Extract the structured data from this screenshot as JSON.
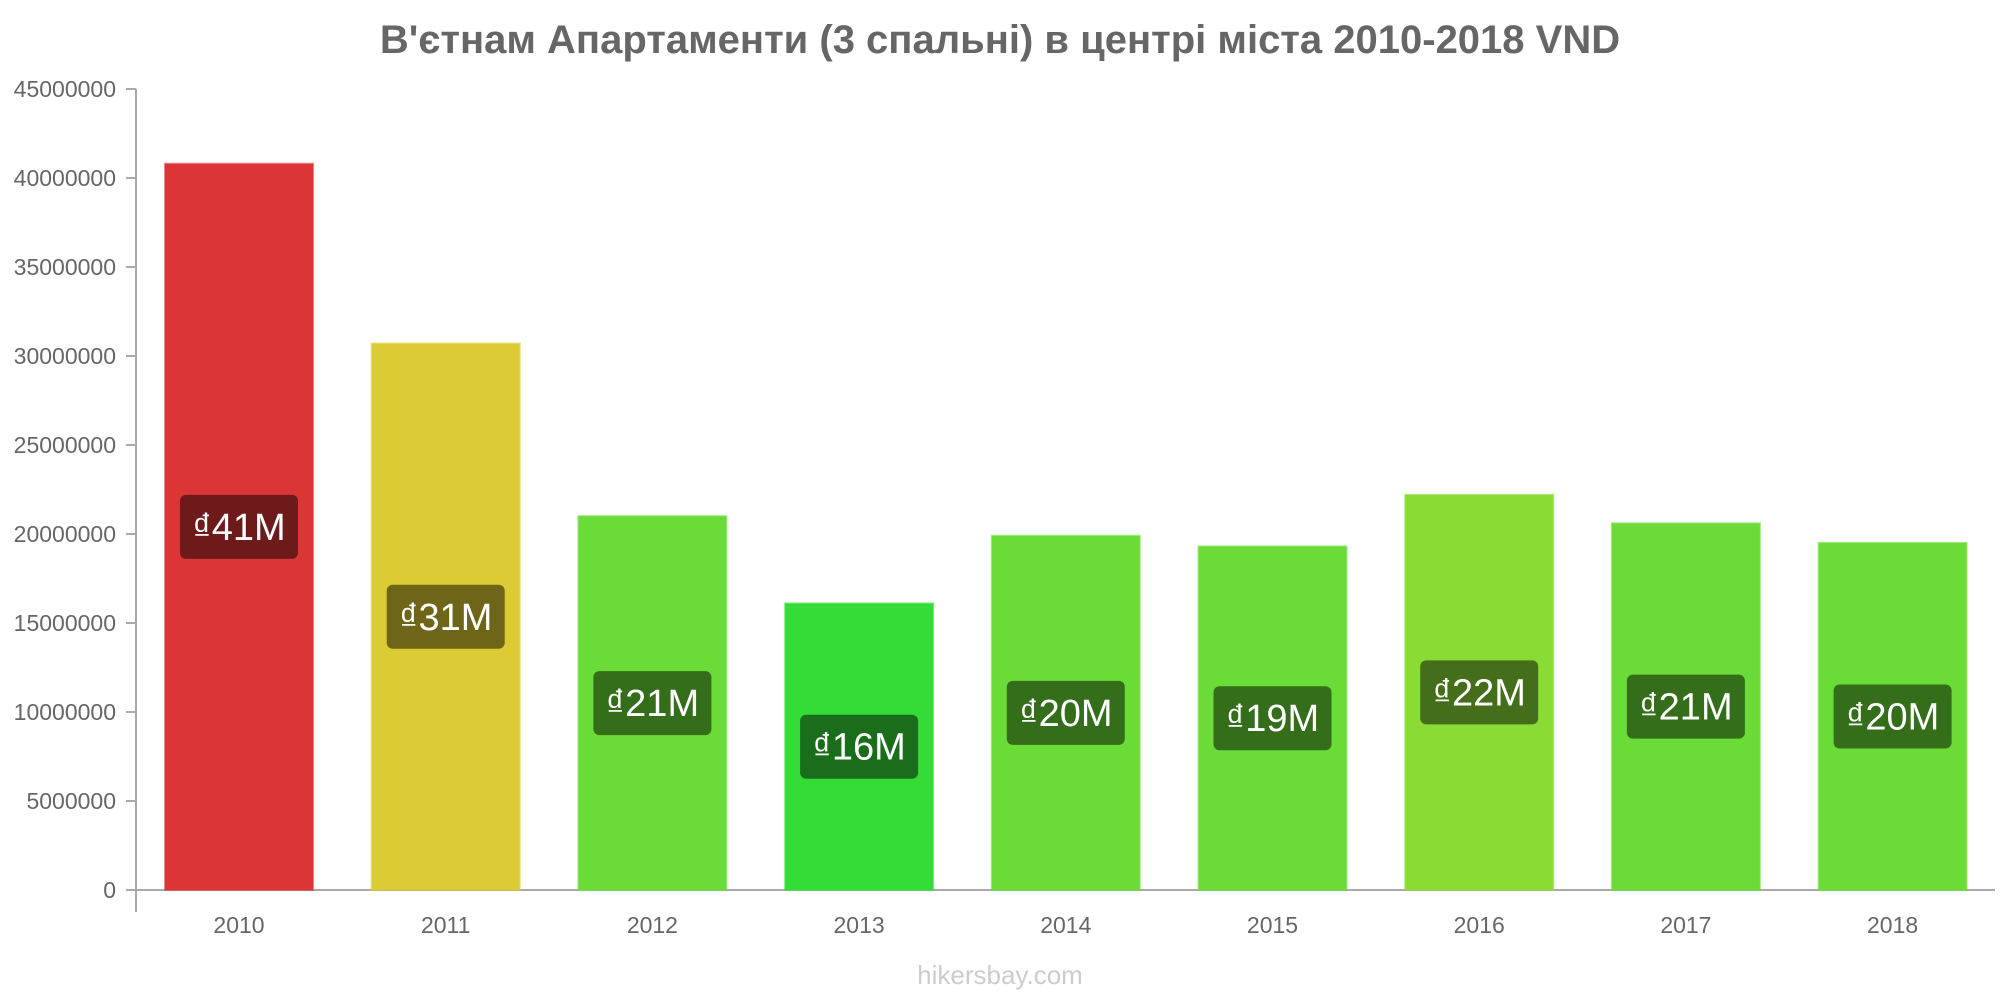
{
  "chart_data": {
    "type": "bar",
    "title": "В'єтнам Апартаменти (3 спальні) в центрі міста 2010-2018 VND",
    "xlabel": "",
    "ylabel": "",
    "ylim": [
      0,
      45000000
    ],
    "yticks": [
      "0",
      "5000000",
      "10000000",
      "15000000",
      "20000000",
      "25000000",
      "30000000",
      "35000000",
      "40000000",
      "45000000"
    ],
    "categories": [
      "2010",
      "2011",
      "2012",
      "2013",
      "2014",
      "2015",
      "2016",
      "2017",
      "2018"
    ],
    "values": [
      40800000,
      30700000,
      21000000,
      16100000,
      19900000,
      19300000,
      22200000,
      20600000,
      19500000
    ],
    "labels": [
      "₫41M",
      "₫31M",
      "₫21M",
      "₫16M",
      "₫20M",
      "₫19M",
      "₫22M",
      "₫21M",
      "₫20M"
    ],
    "bar_colors": [
      "#dc3535",
      "#dbcb35",
      "#6bdc37",
      "#35dc37",
      "#6bdc37",
      "#6bdc37",
      "#8adc35",
      "#6bdc37",
      "#6bdc37"
    ],
    "label_colors": [
      "#6e1a1a",
      "#6e6519",
      "#356e1b",
      "#1a6e1b",
      "#356e1b",
      "#356e1b",
      "#456e1a",
      "#356e1b",
      "#356e1b"
    ],
    "grid": false,
    "legend": "none"
  },
  "watermark": "hikersbay.com"
}
